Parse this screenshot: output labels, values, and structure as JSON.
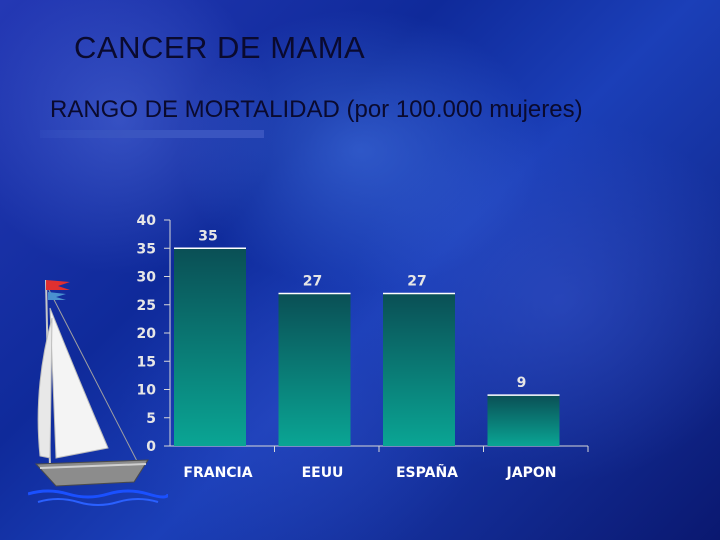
{
  "title": "CANCER DE MAMA",
  "subtitle": "RANGO DE MORTALIDAD  (por 100.000 mujeres)",
  "colors": {
    "bar_top": "#0a5a55",
    "bar_bottom": "#0aa090",
    "bar_edge": "#ffffff",
    "axis": "#d8d8d8"
  },
  "chart_data": {
    "type": "bar",
    "categories": [
      "FRANCIA",
      "EEUU",
      "ESPAÑA",
      "JAPON"
    ],
    "values": [
      35,
      27,
      27,
      9
    ],
    "data_labels": [
      "35",
      "27",
      "27",
      "9"
    ],
    "ylim": [
      0,
      40
    ],
    "yticks": [
      0,
      5,
      10,
      15,
      20,
      25,
      30,
      35,
      40
    ],
    "grid": false,
    "legend": "none"
  },
  "decoration": {
    "image": "sailboat-illustration"
  }
}
